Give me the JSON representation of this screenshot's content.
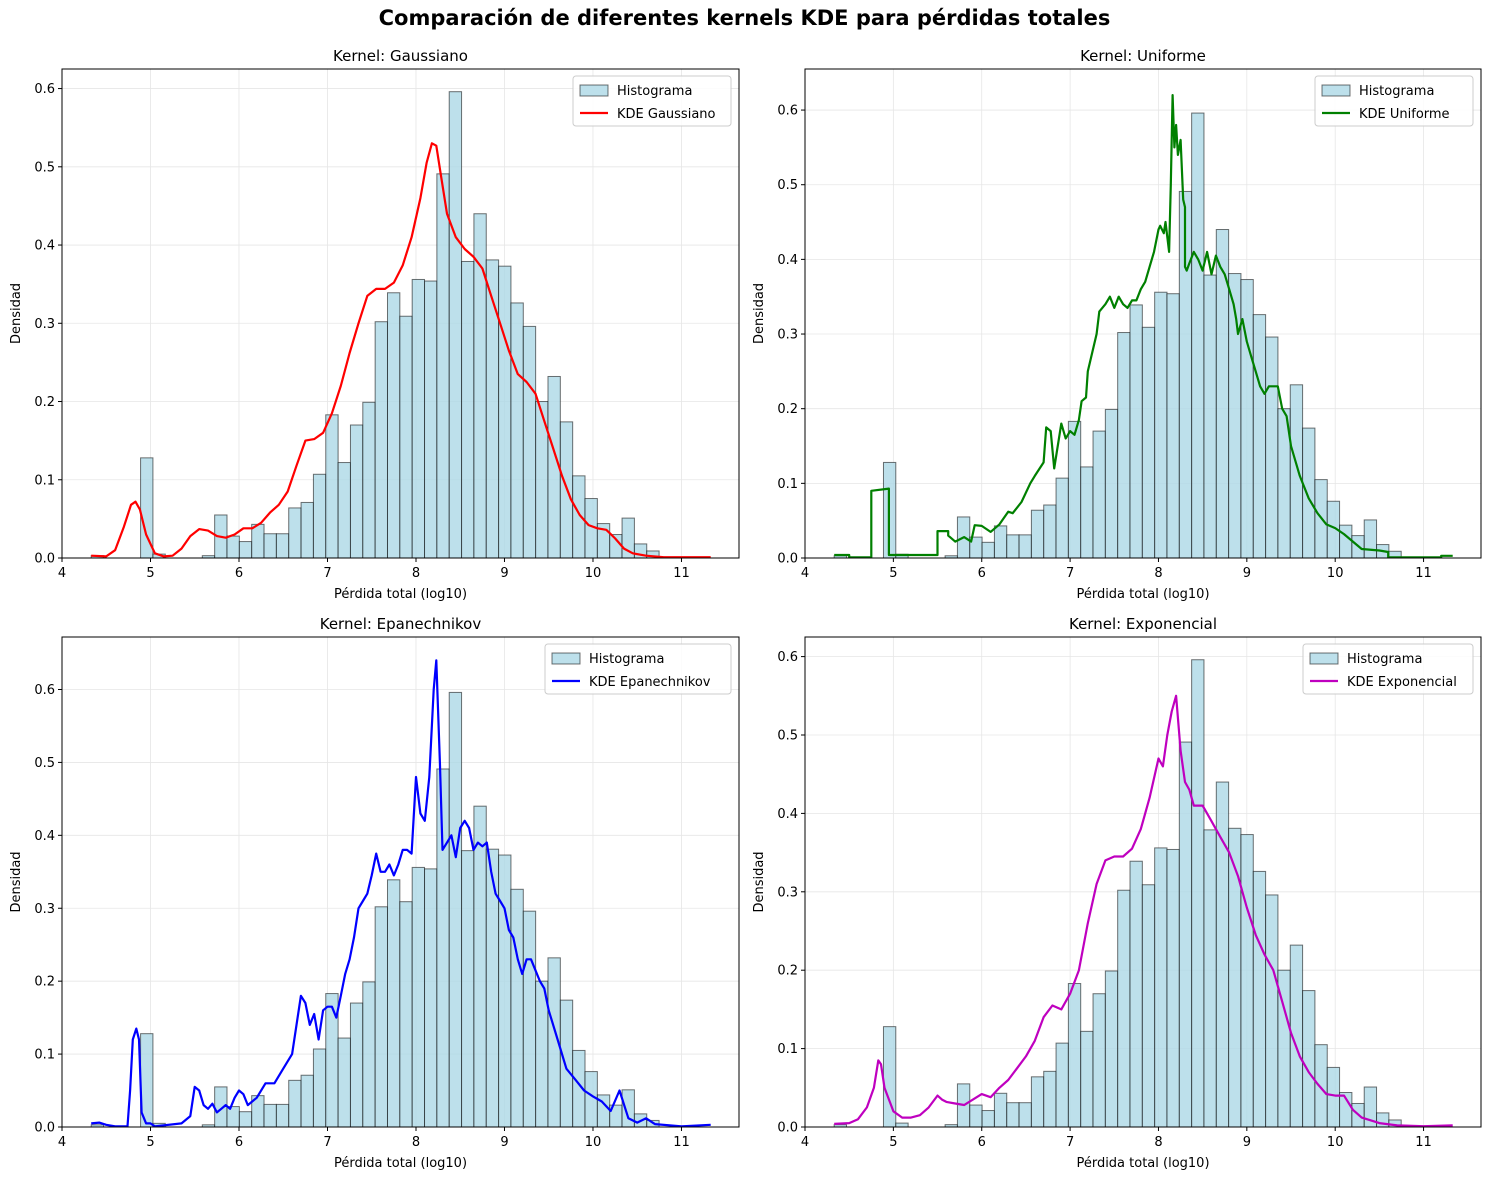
{
  "suptitle": "Comparación de diferentes kernels KDE para pérdidas totales",
  "histogram": {
    "label": "Histograma",
    "fill": "#add8e6",
    "edge": "#000000",
    "bin_start": 4.33,
    "bin_width": 0.1395,
    "densities": [
      0.003,
      0,
      0,
      0,
      0.128,
      0.005,
      0,
      0,
      0,
      0.003,
      0.055,
      0.028,
      0.021,
      0.043,
      0.031,
      0.031,
      0.064,
      0.071,
      0.107,
      0.183,
      0.122,
      0.17,
      0.199,
      0.302,
      0.339,
      0.309,
      0.356,
      0.354,
      0.491,
      0.596,
      0.379,
      0.44,
      0.381,
      0.373,
      0.326,
      0.296,
      0.2,
      0.232,
      0.174,
      0.105,
      0.076,
      0.044,
      0.03,
      0.051,
      0.018,
      0.009,
      0,
      0,
      0,
      0
    ]
  },
  "chart_data": [
    {
      "type": "line",
      "title": "Kernel: Gaussiano",
      "xlabel": "Pérdida total (log10)",
      "ylabel": "Densidad",
      "xlim": [
        4,
        11.65
      ],
      "ylim": [
        0,
        0.625
      ],
      "xticks": [
        "4",
        "5",
        "6",
        "7",
        "8",
        "9",
        "10",
        "11"
      ],
      "yticks": [
        "0.0",
        "0.1",
        "0.2",
        "0.3",
        "0.4",
        "0.5",
        "0.6"
      ],
      "grid": true,
      "legend": "top-right",
      "legend_entries": [
        "Histograma",
        "KDE Gaussiano"
      ],
      "series": [
        {
          "name": "KDE Gaussiano",
          "color": "#ff0000",
          "x": [
            4.33,
            4.5,
            4.6,
            4.7,
            4.78,
            4.83,
            4.88,
            4.95,
            5.05,
            5.15,
            5.25,
            5.35,
            5.45,
            5.55,
            5.65,
            5.75,
            5.85,
            5.95,
            6.05,
            6.15,
            6.25,
            6.35,
            6.45,
            6.55,
            6.65,
            6.75,
            6.85,
            6.95,
            7.05,
            7.15,
            7.25,
            7.35,
            7.45,
            7.55,
            7.65,
            7.75,
            7.85,
            7.95,
            8.05,
            8.12,
            8.18,
            8.23,
            8.28,
            8.35,
            8.45,
            8.55,
            8.65,
            8.75,
            8.85,
            8.95,
            9.05,
            9.15,
            9.25,
            9.35,
            9.45,
            9.55,
            9.65,
            9.75,
            9.85,
            9.95,
            10.05,
            10.15,
            10.25,
            10.35,
            10.45,
            10.6,
            10.8,
            11.0,
            11.33
          ],
          "y": [
            0.003,
            0.002,
            0.01,
            0.04,
            0.068,
            0.072,
            0.062,
            0.03,
            0.006,
            0.002,
            0.003,
            0.012,
            0.028,
            0.037,
            0.035,
            0.028,
            0.026,
            0.03,
            0.038,
            0.038,
            0.045,
            0.058,
            0.068,
            0.085,
            0.118,
            0.15,
            0.152,
            0.16,
            0.185,
            0.22,
            0.262,
            0.3,
            0.335,
            0.344,
            0.344,
            0.352,
            0.374,
            0.41,
            0.46,
            0.505,
            0.53,
            0.527,
            0.49,
            0.44,
            0.41,
            0.395,
            0.385,
            0.37,
            0.335,
            0.3,
            0.265,
            0.235,
            0.225,
            0.21,
            0.175,
            0.14,
            0.105,
            0.075,
            0.055,
            0.042,
            0.038,
            0.036,
            0.025,
            0.012,
            0.006,
            0.003,
            0.001,
            0.001,
            0.001
          ]
        }
      ]
    },
    {
      "type": "line",
      "title": "Kernel: Uniforme",
      "xlabel": "Pérdida total (log10)",
      "ylabel": "Densidad",
      "xlim": [
        4,
        11.65
      ],
      "ylim": [
        0,
        0.655
      ],
      "xticks": [
        "4",
        "5",
        "6",
        "7",
        "8",
        "9",
        "10",
        "11"
      ],
      "yticks": [
        "0.0",
        "0.1",
        "0.2",
        "0.3",
        "0.4",
        "0.5",
        "0.6"
      ],
      "grid": true,
      "legend": "top-right",
      "legend_entries": [
        "Histograma",
        "KDE Uniforme"
      ],
      "series": [
        {
          "name": "KDE Uniforme",
          "color": "#008000",
          "x": [
            4.33,
            4.5,
            4.5,
            4.75,
            4.75,
            4.95,
            4.95,
            5.5,
            5.5,
            5.62,
            5.62,
            5.7,
            5.8,
            5.88,
            5.92,
            6.0,
            6.1,
            6.2,
            6.3,
            6.35,
            6.45,
            6.55,
            6.6,
            6.7,
            6.73,
            6.78,
            6.82,
            6.9,
            6.95,
            7.0,
            7.05,
            7.1,
            7.13,
            7.18,
            7.2,
            7.3,
            7.33,
            7.4,
            7.45,
            7.5,
            7.55,
            7.6,
            7.65,
            7.7,
            7.75,
            7.8,
            7.85,
            7.9,
            7.95,
            8.0,
            8.02,
            8.06,
            8.08,
            8.12,
            8.14,
            8.16,
            8.18,
            8.2,
            8.22,
            8.25,
            8.28,
            8.3,
            8.3,
            8.32,
            8.35,
            8.4,
            8.45,
            8.5,
            8.55,
            8.6,
            8.65,
            8.7,
            8.75,
            8.8,
            8.85,
            8.88,
            8.9,
            8.95,
            9.0,
            9.05,
            9.1,
            9.15,
            9.2,
            9.25,
            9.35,
            9.4,
            9.45,
            9.5,
            9.6,
            9.7,
            9.8,
            9.9,
            10.0,
            10.1,
            10.2,
            10.3,
            10.5,
            10.6,
            10.6,
            11.2,
            11.2,
            11.33
          ],
          "y": [
            0.004,
            0.004,
            0.001,
            0.001,
            0.09,
            0.093,
            0.004,
            0.004,
            0.036,
            0.036,
            0.03,
            0.022,
            0.028,
            0.022,
            0.044,
            0.043,
            0.035,
            0.045,
            0.062,
            0.06,
            0.075,
            0.1,
            0.11,
            0.128,
            0.175,
            0.17,
            0.12,
            0.18,
            0.16,
            0.17,
            0.165,
            0.185,
            0.21,
            0.215,
            0.25,
            0.3,
            0.33,
            0.34,
            0.35,
            0.335,
            0.35,
            0.34,
            0.335,
            0.345,
            0.345,
            0.36,
            0.37,
            0.39,
            0.41,
            0.44,
            0.445,
            0.435,
            0.45,
            0.41,
            0.5,
            0.62,
            0.55,
            0.58,
            0.54,
            0.56,
            0.48,
            0.47,
            0.39,
            0.385,
            0.395,
            0.41,
            0.4,
            0.385,
            0.41,
            0.38,
            0.405,
            0.39,
            0.38,
            0.36,
            0.34,
            0.32,
            0.3,
            0.32,
            0.29,
            0.27,
            0.25,
            0.23,
            0.22,
            0.23,
            0.23,
            0.2,
            0.19,
            0.15,
            0.11,
            0.08,
            0.06,
            0.045,
            0.04,
            0.032,
            0.022,
            0.012,
            0.01,
            0.008,
            0.001,
            0.001,
            0.003,
            0.003
          ]
        }
      ]
    },
    {
      "type": "line",
      "title": "Kernel: Epanechnikov",
      "xlabel": "Pérdida total (log10)",
      "ylabel": "Densidad",
      "xlim": [
        4,
        11.65
      ],
      "ylim": [
        0,
        0.672
      ],
      "xticks": [
        "4",
        "5",
        "6",
        "7",
        "8",
        "9",
        "10",
        "11"
      ],
      "yticks": [
        "0.0",
        "0.1",
        "0.2",
        "0.3",
        "0.4",
        "0.5",
        "0.6"
      ],
      "grid": true,
      "legend": "top-right",
      "legend_entries": [
        "Histograma",
        "KDE Epanechnikov"
      ],
      "series": [
        {
          "name": "KDE Epanechnikov",
          "color": "#0000ff",
          "x": [
            4.33,
            4.42,
            4.5,
            4.6,
            4.74,
            4.77,
            4.8,
            4.84,
            4.87,
            4.9,
            4.95,
            5.0,
            5.05,
            5.35,
            5.45,
            5.5,
            5.55,
            5.6,
            5.65,
            5.7,
            5.75,
            5.8,
            5.85,
            5.9,
            5.95,
            6.0,
            6.05,
            6.1,
            6.2,
            6.3,
            6.4,
            6.5,
            6.6,
            6.65,
            6.7,
            6.75,
            6.8,
            6.85,
            6.9,
            6.95,
            7.0,
            7.05,
            7.1,
            7.15,
            7.2,
            7.25,
            7.3,
            7.35,
            7.4,
            7.45,
            7.5,
            7.55,
            7.6,
            7.65,
            7.7,
            7.75,
            7.8,
            7.85,
            7.9,
            7.95,
            8.0,
            8.05,
            8.1,
            8.15,
            8.2,
            8.23,
            8.27,
            8.3,
            8.35,
            8.4,
            8.45,
            8.5,
            8.55,
            8.6,
            8.65,
            8.7,
            8.75,
            8.8,
            8.85,
            8.9,
            8.95,
            9.0,
            9.05,
            9.1,
            9.15,
            9.2,
            9.25,
            9.3,
            9.4,
            9.45,
            9.5,
            9.6,
            9.7,
            9.8,
            9.9,
            10.0,
            10.1,
            10.2,
            10.3,
            10.4,
            10.5,
            10.6,
            10.7,
            11.0,
            11.33
          ],
          "y": [
            0.005,
            0.006,
            0.003,
            0.001,
            0.001,
            0.05,
            0.12,
            0.135,
            0.12,
            0.02,
            0.005,
            0.005,
            0.001,
            0.005,
            0.015,
            0.055,
            0.05,
            0.03,
            0.025,
            0.032,
            0.02,
            0.025,
            0.03,
            0.025,
            0.04,
            0.05,
            0.045,
            0.03,
            0.04,
            0.06,
            0.06,
            0.08,
            0.1,
            0.14,
            0.18,
            0.17,
            0.14,
            0.155,
            0.12,
            0.16,
            0.165,
            0.165,
            0.15,
            0.18,
            0.21,
            0.23,
            0.26,
            0.3,
            0.31,
            0.32,
            0.345,
            0.375,
            0.35,
            0.35,
            0.36,
            0.345,
            0.36,
            0.38,
            0.38,
            0.375,
            0.48,
            0.43,
            0.42,
            0.48,
            0.6,
            0.64,
            0.5,
            0.38,
            0.39,
            0.4,
            0.37,
            0.41,
            0.42,
            0.41,
            0.38,
            0.39,
            0.385,
            0.39,
            0.35,
            0.32,
            0.31,
            0.3,
            0.27,
            0.26,
            0.23,
            0.21,
            0.23,
            0.23,
            0.2,
            0.19,
            0.16,
            0.12,
            0.08,
            0.065,
            0.05,
            0.042,
            0.035,
            0.022,
            0.05,
            0.012,
            0.006,
            0.012,
            0.004,
            0.001,
            0.003
          ]
        }
      ]
    },
    {
      "type": "line",
      "title": "Kernel: Exponencial",
      "xlabel": "Pérdida total (log10)",
      "ylabel": "Densidad",
      "xlim": [
        4,
        11.65
      ],
      "ylim": [
        0,
        0.625
      ],
      "xticks": [
        "4",
        "5",
        "6",
        "7",
        "8",
        "9",
        "10",
        "11"
      ],
      "yticks": [
        "0.0",
        "0.1",
        "0.2",
        "0.3",
        "0.4",
        "0.5",
        "0.6"
      ],
      "grid": true,
      "legend": "top-right",
      "legend_entries": [
        "Histograma",
        "KDE Exponencial"
      ],
      "series": [
        {
          "name": "KDE Exponencial",
          "color": "#bf00bf",
          "x": [
            4.33,
            4.5,
            4.6,
            4.7,
            4.78,
            4.83,
            4.86,
            4.9,
            5.0,
            5.1,
            5.2,
            5.3,
            5.4,
            5.5,
            5.55,
            5.6,
            5.7,
            5.8,
            5.9,
            6.0,
            6.1,
            6.2,
            6.3,
            6.4,
            6.5,
            6.6,
            6.7,
            6.8,
            6.9,
            7.0,
            7.1,
            7.2,
            7.3,
            7.4,
            7.5,
            7.6,
            7.7,
            7.8,
            7.9,
            8.0,
            8.05,
            8.1,
            8.15,
            8.2,
            8.25,
            8.3,
            8.35,
            8.4,
            8.5,
            8.6,
            8.7,
            8.8,
            8.9,
            9.0,
            9.1,
            9.2,
            9.3,
            9.4,
            9.5,
            9.6,
            9.7,
            9.8,
            9.9,
            10.0,
            10.1,
            10.2,
            10.3,
            10.5,
            10.7,
            11.0,
            11.33
          ],
          "y": [
            0.004,
            0.005,
            0.01,
            0.025,
            0.05,
            0.085,
            0.08,
            0.05,
            0.02,
            0.012,
            0.012,
            0.015,
            0.025,
            0.04,
            0.035,
            0.032,
            0.03,
            0.028,
            0.035,
            0.042,
            0.038,
            0.05,
            0.06,
            0.075,
            0.09,
            0.11,
            0.14,
            0.155,
            0.15,
            0.17,
            0.2,
            0.26,
            0.31,
            0.34,
            0.345,
            0.345,
            0.355,
            0.38,
            0.42,
            0.47,
            0.46,
            0.5,
            0.53,
            0.55,
            0.48,
            0.44,
            0.43,
            0.41,
            0.41,
            0.39,
            0.37,
            0.35,
            0.32,
            0.28,
            0.245,
            0.22,
            0.2,
            0.16,
            0.12,
            0.09,
            0.07,
            0.055,
            0.042,
            0.04,
            0.04,
            0.022,
            0.012,
            0.005,
            0.002,
            0.001,
            0.002
          ]
        }
      ]
    }
  ]
}
